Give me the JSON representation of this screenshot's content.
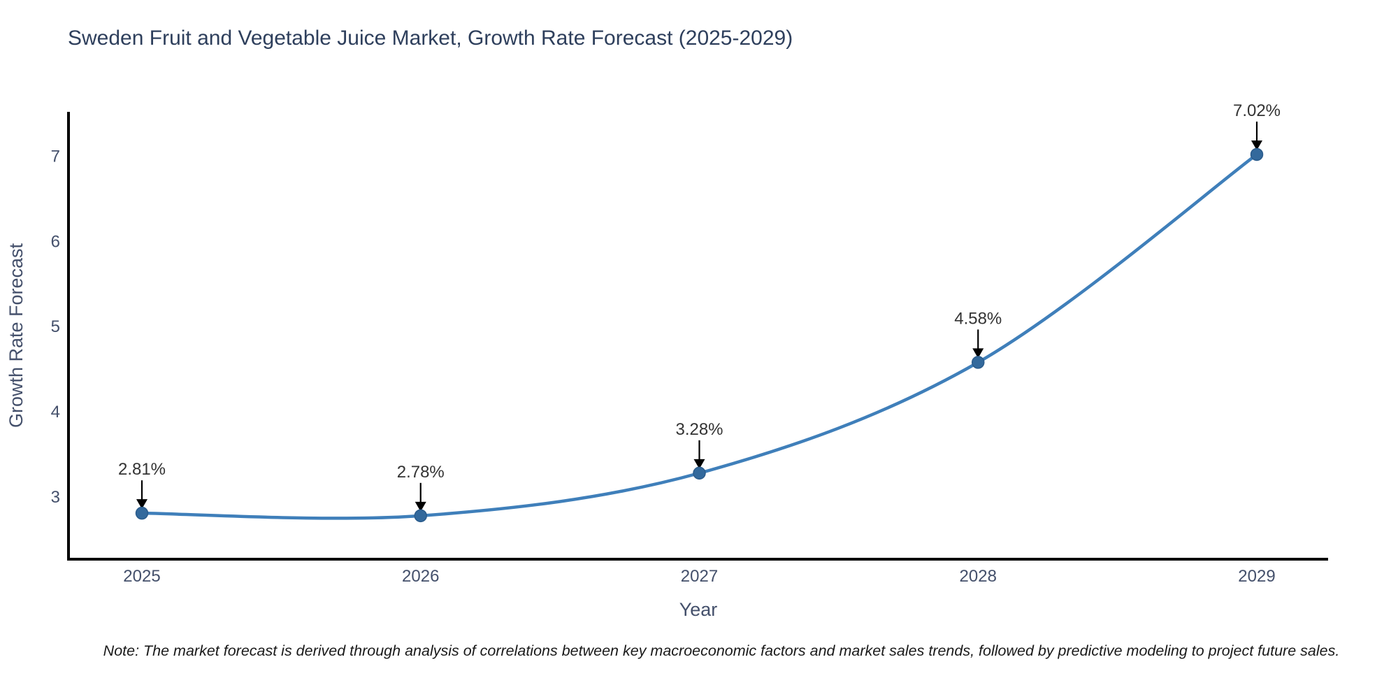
{
  "title": "Sweden Fruit and Vegetable Juice Market, Growth Rate Forecast (2025-2029)",
  "note": "Note: The market forecast is derived through analysis of correlations between key macroeconomic factors and market sales trends, followed by predictive modeling to project future sales.",
  "colors": {
    "line": "#3f7fba",
    "marker_fill": "#33699c",
    "marker_stroke": "#2b5c8c",
    "spine": "#000000",
    "arrow": "#000000",
    "title_text": "#2e3f5c",
    "axis_text": "#44506b",
    "annotation_text": "#333333",
    "background": "#ffffff"
  },
  "chart_data": {
    "type": "line",
    "title": "Sweden Fruit and Vegetable Juice Market, Growth Rate Forecast (2025-2029)",
    "xlabel": "Year",
    "ylabel": "Growth Rate Forecast",
    "x": [
      2025,
      2026,
      2027,
      2028,
      2029
    ],
    "values": [
      2.81,
      2.78,
      3.28,
      4.58,
      7.02
    ],
    "point_labels": [
      "2.81%",
      "2.78%",
      "3.28%",
      "4.58%",
      "7.02%"
    ],
    "x_tick_labels": [
      "2025",
      "2026",
      "2027",
      "2028",
      "2029"
    ],
    "y_ticks": [
      3,
      4,
      5,
      6,
      7
    ],
    "xlim": [
      2024.74,
      2029.26
    ],
    "ylim": [
      2.27,
      7.52
    ],
    "line_shape": "spline",
    "grid": false,
    "legend": false,
    "markers": true,
    "annotations_with_arrows": true
  }
}
